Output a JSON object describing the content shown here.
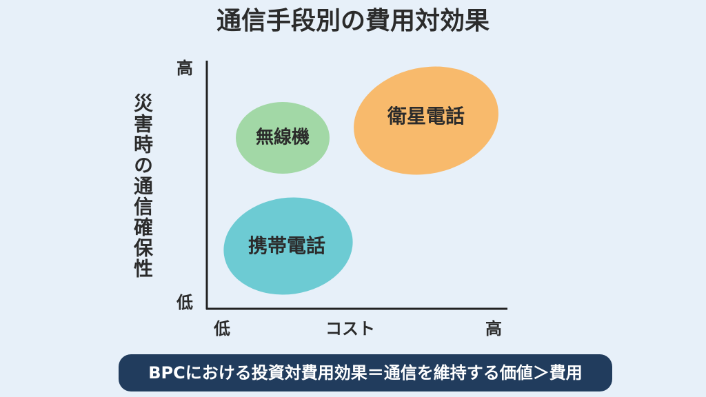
{
  "title": "通信手段別の費用対効果",
  "y_axis": {
    "label": "災害時の通信確保性",
    "high": "高",
    "low": "低"
  },
  "x_axis": {
    "label": "コスト",
    "low": "低",
    "high": "高"
  },
  "nodes": [
    {
      "label": "無線機"
    },
    {
      "label": "衛星電話"
    },
    {
      "label": "携帯電話"
    }
  ],
  "footer": "BPCにおける投資対費用効果＝通信を維持する価値＞費用"
}
